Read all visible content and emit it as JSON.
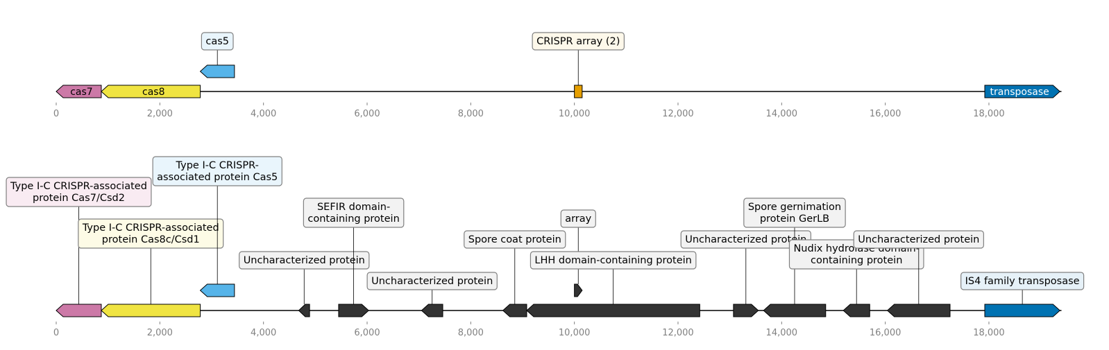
{
  "colors": {
    "cas7": "#cc79a7",
    "cas8": "#f0e442",
    "cas5": "#56b4e9",
    "crispr": "#e69f00",
    "transposase": "#0072b2",
    "other": "#333333",
    "axis_text": "#808080",
    "ann_cas7": "#f9ebf2",
    "ann_cas8": "#fdfbe6",
    "ann_cas5": "#e9f5fc",
    "ann_crispr": "#fdf8ea",
    "ann_other": "#f2f2f2",
    "ann_transposase": "#e6f1f8"
  },
  "axis": {
    "min": 0,
    "max": 19400,
    "ticks": [
      0,
      2000,
      4000,
      6000,
      8000,
      10000,
      12000,
      14000,
      16000,
      18000
    ],
    "tick_labels": [
      "0",
      "2,000",
      "4,000",
      "6,000",
      "8,000",
      "10,000",
      "12,000",
      "14,000",
      "16,000",
      "18,000"
    ]
  },
  "tracks": [
    {
      "name": "summary",
      "genes": [
        {
          "id": "cas7",
          "start": 0,
          "end": 870,
          "strand": -1,
          "color": "cas7",
          "label": "cas7",
          "label_style": "dark",
          "ann": null
        },
        {
          "id": "cas8",
          "start": 870,
          "end": 2780,
          "strand": -1,
          "color": "cas8",
          "label": "cas8",
          "label_style": "dark",
          "ann": null
        },
        {
          "id": "cas5",
          "start": 2780,
          "end": 3440,
          "strand": -1,
          "color": "cas5",
          "row": 1,
          "label": null,
          "ann": {
            "lines": [
              "cas5"
            ],
            "level": 1,
            "bg": "ann_cas5"
          }
        },
        {
          "id": "crispr",
          "start": 10000,
          "end": 10150,
          "strand": 0,
          "color": "crispr",
          "label": null,
          "ann": {
            "lines": [
              "CRISPR array (2)"
            ],
            "level": 1,
            "bg": "ann_crispr"
          }
        },
        {
          "id": "transposase",
          "start": 17920,
          "end": 19370,
          "strand": 1,
          "color": "transposase",
          "label": "transposase",
          "label_style": "light",
          "ann": null
        }
      ]
    },
    {
      "name": "detail",
      "genes": [
        {
          "id": "cas7",
          "start": 0,
          "end": 870,
          "strand": -1,
          "color": "cas7",
          "ann": {
            "lines": [
              "Type I-C CRISPR-associated",
              "protein Cas7/Csd2"
            ],
            "level": 4,
            "bg": "ann_cas7"
          }
        },
        {
          "id": "cas8",
          "start": 870,
          "end": 2780,
          "strand": -1,
          "color": "cas8",
          "ann": {
            "lines": [
              "Type I-C CRISPR-associated",
              "protein Cas8c/Csd1"
            ],
            "level": 2,
            "bg": "ann_cas8"
          }
        },
        {
          "id": "cas5",
          "start": 2780,
          "end": 3440,
          "strand": -1,
          "color": "cas5",
          "row": 1,
          "ann": {
            "lines": [
              "Type I-C CRISPR-",
              "associated protein Cas5"
            ],
            "level": 5,
            "bg": "ann_cas5"
          }
        },
        {
          "id": "g1",
          "start": 4680,
          "end": 4890,
          "strand": -1,
          "color": "other",
          "ann": {
            "lines": [
              "Uncharacterized protein"
            ],
            "level": 1,
            "bg": "ann_other"
          }
        },
        {
          "id": "g2",
          "start": 5450,
          "end": 6030,
          "strand": 1,
          "color": "other",
          "ann": {
            "lines": [
              "SEFIR domain-",
              "containing protein"
            ],
            "level": 3,
            "bg": "ann_other"
          }
        },
        {
          "id": "g3",
          "start": 7050,
          "end": 7460,
          "strand": -1,
          "color": "other",
          "ann": {
            "lines": [
              "Uncharacterized protein"
            ],
            "level": 0,
            "bg": "ann_other"
          }
        },
        {
          "id": "g4",
          "start": 8620,
          "end": 9080,
          "strand": -1,
          "color": "other",
          "ann": {
            "lines": [
              "Spore coat protein"
            ],
            "level": 2,
            "bg": "ann_other"
          }
        },
        {
          "id": "array",
          "start": 10000,
          "end": 10150,
          "strand": 1,
          "color": "other",
          "row": 1,
          "ann": {
            "lines": [
              "array"
            ],
            "level": 3,
            "bg": "ann_other"
          }
        },
        {
          "id": "g5",
          "start": 9080,
          "end": 12420,
          "strand": -1,
          "color": "other",
          "ann": {
            "lines": [
              "LHH domain-containing protein"
            ],
            "level": 1,
            "bg": "ann_other"
          }
        },
        {
          "id": "g6",
          "start": 13070,
          "end": 13550,
          "strand": 1,
          "color": "other",
          "ann": {
            "lines": [
              "Uncharacterized protein"
            ],
            "level": 2,
            "bg": "ann_other"
          }
        },
        {
          "id": "g7",
          "start": 13650,
          "end": 14850,
          "strand": -1,
          "color": "other",
          "ann": {
            "lines": [
              "Spore gernimation",
              "protein GerLB"
            ],
            "level": 3,
            "bg": "ann_other"
          }
        },
        {
          "id": "g8",
          "start": 15190,
          "end": 15700,
          "strand": -1,
          "color": "other",
          "ann": {
            "lines": [
              "Nudix hydrolase domain-",
              "containing protein"
            ],
            "level": 1,
            "bg": "ann_other"
          }
        },
        {
          "id": "g9",
          "start": 16040,
          "end": 17250,
          "strand": -1,
          "color": "other",
          "ann": {
            "lines": [
              "Uncharacterized protein"
            ],
            "level": 2,
            "bg": "ann_other"
          }
        },
        {
          "id": "transposase",
          "start": 17920,
          "end": 19370,
          "strand": 1,
          "color": "transposase",
          "ann": {
            "lines": [
              "IS4 family transposase"
            ],
            "level": 0,
            "bg": "ann_transposase"
          }
        }
      ]
    }
  ]
}
